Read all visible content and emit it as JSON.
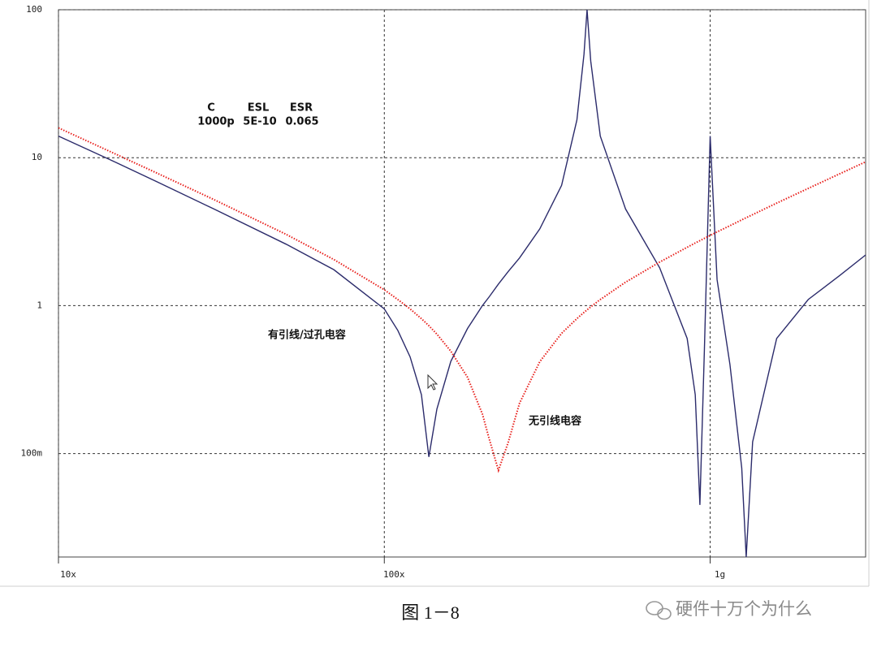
{
  "chart_data": {
    "type": "line",
    "xscale": "log",
    "yscale": "log",
    "grid": true,
    "xlim": [
      10000000,
      3000000000
    ],
    "ylim": [
      0.02,
      100
    ],
    "xticks": [
      {
        "value": 10000000,
        "label": "10x"
      },
      {
        "value": 100000000,
        "label": "100x"
      },
      {
        "value": 1000000000,
        "label": "1g"
      }
    ],
    "yticks": [
      100,
      10,
      1,
      {
        "value": 0.1,
        "label": "100m"
      }
    ],
    "annotations": {
      "header": [
        "C",
        "ESL",
        "ESR"
      ],
      "values": [
        "1000p",
        "5E-10",
        "0.065"
      ]
    },
    "x": [
      10000000,
      15000000,
      20000000,
      30000000,
      50000000,
      70000000,
      100000000,
      110000000,
      120000000,
      130000000,
      137000000,
      145000000,
      160000000,
      180000000,
      200000000,
      210000000,
      224000000,
      240000000,
      260000000,
      300000000,
      350000000,
      390000000,
      410000000,
      419000000,
      430000000,
      460000000,
      550000000,
      700000000,
      850000000,
      900000000,
      930000000,
      960000000,
      1000000000,
      1050000000,
      1150000000,
      1250000000,
      1290000000,
      1350000000,
      1600000000,
      2000000000,
      2500000000,
      3000000000
    ],
    "series": [
      {
        "name": "有引线/过孔电容",
        "color": "#2b2b6b",
        "style": "solid",
        "values": [
          14,
          9.3,
          6.9,
          4.5,
          2.6,
          1.75,
          0.95,
          0.68,
          0.45,
          0.25,
          0.095,
          0.2,
          0.42,
          0.7,
          1.0,
          1.15,
          1.4,
          1.7,
          2.1,
          3.3,
          6.5,
          18,
          50,
          100,
          45,
          14,
          4.5,
          1.8,
          0.6,
          0.25,
          0.045,
          0.5,
          14,
          1.5,
          0.4,
          0.08,
          0.02,
          0.12,
          0.6,
          1.1,
          1.6,
          2.2
        ]
      },
      {
        "name": "无引线电容",
        "color": "#e8201c",
        "style": "dotted",
        "values": [
          15.9,
          10.56,
          7.89,
          5.21,
          3.03,
          2.05,
          1.28,
          1.1,
          0.95,
          0.816,
          0.732,
          0.642,
          0.492,
          0.328,
          0.185,
          0.125,
          0.077,
          0.119,
          0.219,
          0.418,
          0.65,
          0.817,
          0.9,
          0.936,
          0.981,
          1.1,
          1.44,
          1.97,
          2.48,
          2.65,
          2.75,
          2.85,
          2.98,
          3.15,
          3.47,
          3.8,
          3.93,
          4.12,
          4.93,
          6.2,
          7.79,
          9.37
        ]
      }
    ]
  },
  "caption": "图 1－8",
  "watermark": "硬件十万个为什么"
}
